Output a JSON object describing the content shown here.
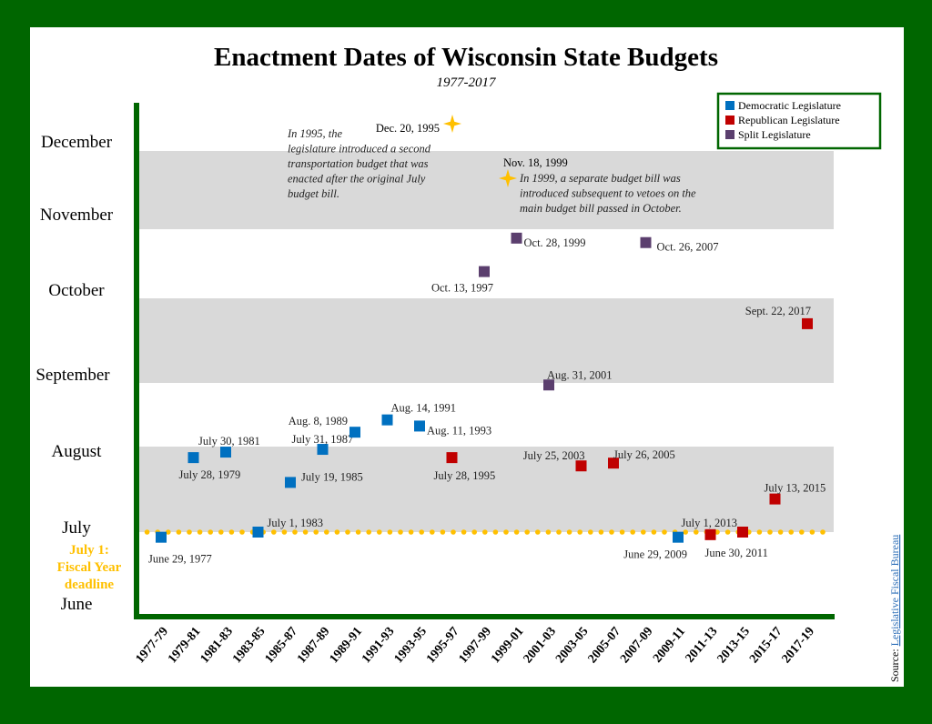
{
  "chart_data": {
    "type": "scatter",
    "title": "Enactment Dates of Wisconsin State Budgets",
    "subtitle": "1977-2017",
    "y_months": [
      "June",
      "July",
      "August",
      "September",
      "October",
      "November",
      "December"
    ],
    "categories": [
      "1977-79",
      "1979-81",
      "1981-83",
      "1983-85",
      "1985-87",
      "1987-89",
      "1989-91",
      "1991-93",
      "1993-95",
      "1995-97",
      "1997-99",
      "1999-01",
      "2001-03",
      "2003-05",
      "2005-07",
      "2007-09",
      "2009-11",
      "2011-13",
      "2013-15",
      "2015-17",
      "2017-19"
    ],
    "legend": {
      "placement": "top-right",
      "entries": [
        {
          "key": "D",
          "label": "Democratic Legislature",
          "color": "#0070C0"
        },
        {
          "key": "R",
          "label": "Republican Legislature",
          "color": "#C00000"
        },
        {
          "key": "S",
          "label": "Split Legislature",
          "color": "#5B3F6E"
        }
      ]
    },
    "points": [
      {
        "cat": "1977-79",
        "date": "1977-06-29",
        "party": "D",
        "label": "June 29, 1977"
      },
      {
        "cat": "1979-81",
        "date": "1979-07-28",
        "party": "D",
        "label": "July 28, 1979"
      },
      {
        "cat": "1981-83",
        "date": "1981-07-30",
        "party": "D",
        "label": "July 30, 1981"
      },
      {
        "cat": "1983-85",
        "date": "1983-07-01",
        "party": "D",
        "label": "July 1, 1983"
      },
      {
        "cat": "1985-87",
        "date": "1985-07-19",
        "party": "D",
        "label": "July 19, 1985"
      },
      {
        "cat": "1987-89",
        "date": "1987-07-31",
        "party": "D",
        "label": "July 31, 1987"
      },
      {
        "cat": "1989-91",
        "date": "1989-08-08",
        "party": "D",
        "label": "Aug. 8, 1989"
      },
      {
        "cat": "1991-93",
        "date": "1991-08-14",
        "party": "D",
        "label": "Aug. 14, 1991"
      },
      {
        "cat": "1993-95",
        "date": "1993-08-11",
        "party": "D",
        "label": "Aug. 11, 1993"
      },
      {
        "cat": "1995-97",
        "date": "1995-07-28",
        "party": "R",
        "label": "July 28, 1995"
      },
      {
        "cat": "1997-99",
        "date": "1997-10-13",
        "party": "S",
        "label": "Oct. 13, 1997"
      },
      {
        "cat": "1999-01",
        "date": "1999-10-28",
        "party": "S",
        "label": "Oct. 28, 1999"
      },
      {
        "cat": "2001-03",
        "date": "2001-08-31",
        "party": "S",
        "label": "Aug. 31, 2001"
      },
      {
        "cat": "2003-05",
        "date": "2003-07-25",
        "party": "R",
        "label": "July 25, 2003"
      },
      {
        "cat": "2005-07",
        "date": "2005-07-26",
        "party": "R",
        "label": "July 26, 2005"
      },
      {
        "cat": "2007-09",
        "date": "2007-10-26",
        "party": "S",
        "label": "Oct. 26, 2007"
      },
      {
        "cat": "2009-11",
        "date": "2009-06-29",
        "party": "D",
        "label": "June 29, 2009"
      },
      {
        "cat": "2011-13",
        "date": "2011-06-30",
        "party": "R",
        "label": "June 30, 2011"
      },
      {
        "cat": "2013-15",
        "date": "2013-07-01",
        "party": "R",
        "label": "July 1, 2013"
      },
      {
        "cat": "2015-17",
        "date": "2015-07-13",
        "party": "R",
        "label": "July 13, 2015"
      },
      {
        "cat": "2017-19",
        "date": "2017-09-22",
        "party": "R",
        "label": "Sept. 22, 2017"
      }
    ],
    "stars": [
      {
        "cat": "1995-97",
        "date": "1995-12-20",
        "label": "Dec. 20, 1995",
        "note": "In 1995, the legislature introduced a second transportation budget that was enacted after the original July budget bill."
      },
      {
        "cat": "1999-01",
        "date": "1999-11-18",
        "label": "Nov. 18, 1999",
        "note": "In 1999, a separate budget bill was introduced subsequent to vetoes on the main budget bill passed in October."
      }
    ],
    "star_color": "#FFC000",
    "deadline": {
      "date": "July 1",
      "label_lines": [
        "July 1:",
        "Fiscal Year",
        "deadline"
      ],
      "color": "#FFC000"
    },
    "source_prefix": "Source: ",
    "source_link": "Legislative Fiscal Bureau"
  }
}
